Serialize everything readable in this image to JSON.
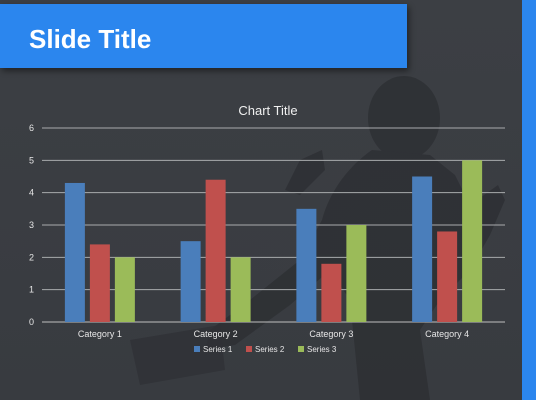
{
  "slide": {
    "title": "Slide Title",
    "colors": {
      "accent": "#2b86ee",
      "background": "#3a3d42"
    },
    "background_image": "running-businessman-silhouette"
  },
  "chart_data": {
    "type": "bar",
    "title": "Chart Title",
    "xlabel": "",
    "ylabel": "",
    "categories": [
      "Category 1",
      "Category 2",
      "Category 3",
      "Category 4"
    ],
    "series": [
      {
        "name": "Series 1",
        "color": "#4a7ebb",
        "values": [
          4.3,
          2.5,
          3.5,
          4.5
        ]
      },
      {
        "name": "Series 2",
        "color": "#c0504d",
        "values": [
          2.4,
          4.4,
          1.8,
          2.8
        ]
      },
      {
        "name": "Series 3",
        "color": "#9bbb59",
        "values": [
          2.0,
          2.0,
          3.0,
          5.0
        ]
      }
    ],
    "ylim": [
      0,
      6
    ],
    "yticks": [
      "0",
      "1",
      "2",
      "3",
      "4",
      "5",
      "6"
    ],
    "grid": true,
    "legend_position": "bottom"
  }
}
